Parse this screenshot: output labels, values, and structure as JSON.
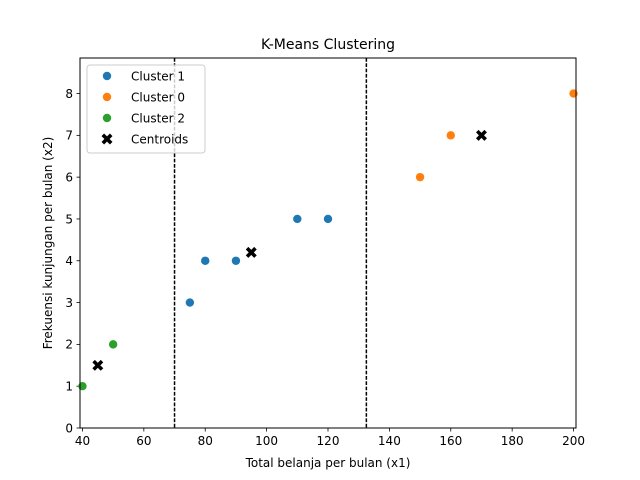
{
  "chart_data": {
    "type": "scatter",
    "title": "K-Means Clustering",
    "xlabel": "Total belanja per bulan (x1)",
    "ylabel": "Frekuensi kunjungan per bulan (x2)",
    "xlim": [
      39.2,
      200.8
    ],
    "ylim": [
      0,
      8.85
    ],
    "x_ticks": [
      40,
      60,
      80,
      100,
      120,
      140,
      160,
      180,
      200
    ],
    "y_ticks": [
      0,
      1,
      2,
      3,
      4,
      5,
      6,
      7,
      8
    ],
    "grid": false,
    "legend_position": "top-left",
    "series": [
      {
        "name": "Cluster 1",
        "color": "#1f77b4",
        "marker": "circle",
        "points": [
          [
            75,
            3
          ],
          [
            80,
            4
          ],
          [
            90,
            4
          ],
          [
            110,
            5
          ],
          [
            120,
            5
          ]
        ]
      },
      {
        "name": "Cluster 0",
        "color": "#ff7f0e",
        "marker": "circle",
        "points": [
          [
            150,
            6
          ],
          [
            160,
            7
          ],
          [
            200,
            8
          ]
        ]
      },
      {
        "name": "Cluster 2",
        "color": "#2ca02c",
        "marker": "circle",
        "points": [
          [
            40,
            1
          ],
          [
            50,
            2
          ]
        ]
      },
      {
        "name": "Centroids",
        "color": "#000000",
        "marker": "x",
        "points": [
          [
            95,
            4.2
          ],
          [
            170,
            7
          ],
          [
            45,
            1.5
          ]
        ]
      }
    ],
    "decision_boundaries_x": [
      70,
      132.5
    ]
  }
}
